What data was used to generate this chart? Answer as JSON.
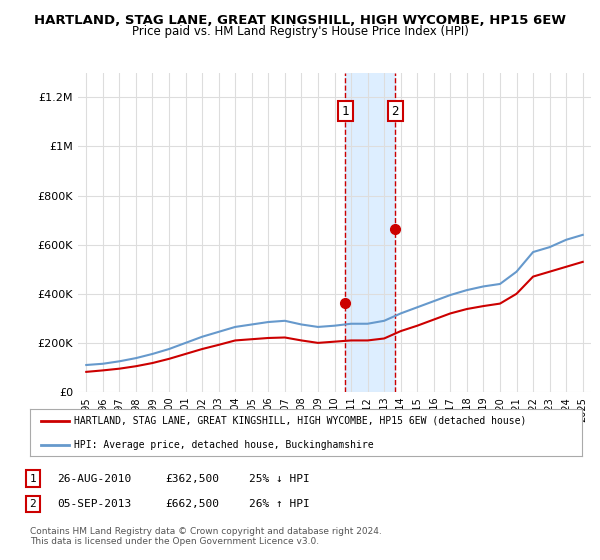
{
  "title": "HARTLAND, STAG LANE, GREAT KINGSHILL, HIGH WYCOMBE, HP15 6EW",
  "subtitle": "Price paid vs. HM Land Registry's House Price Index (HPI)",
  "xlim_years": [
    1995,
    2025
  ],
  "ylim": [
    0,
    1300000
  ],
  "yticks": [
    0,
    200000,
    400000,
    600000,
    800000,
    1000000,
    1200000
  ],
  "ytick_labels": [
    "£0",
    "£200K",
    "£400K",
    "£600K",
    "£800K",
    "£1M",
    "£1.2M"
  ],
  "xtick_years": [
    1995,
    1996,
    1997,
    1998,
    1999,
    2000,
    2001,
    2002,
    2003,
    2004,
    2005,
    2006,
    2007,
    2008,
    2009,
    2010,
    2011,
    2012,
    2013,
    2014,
    2015,
    2016,
    2017,
    2018,
    2019,
    2020,
    2021,
    2022,
    2023,
    2024,
    2025
  ],
  "hpi_years": [
    1995,
    1996,
    1997,
    1998,
    1999,
    2000,
    2001,
    2002,
    2003,
    2004,
    2005,
    2006,
    2007,
    2008,
    2009,
    2010,
    2011,
    2012,
    2013,
    2014,
    2015,
    2016,
    2017,
    2018,
    2019,
    2020,
    2021,
    2022,
    2023,
    2024,
    2025
  ],
  "hpi_values": [
    110000,
    115000,
    125000,
    138000,
    155000,
    175000,
    200000,
    225000,
    245000,
    265000,
    275000,
    285000,
    290000,
    275000,
    265000,
    270000,
    278000,
    278000,
    290000,
    320000,
    345000,
    370000,
    395000,
    415000,
    430000,
    440000,
    490000,
    570000,
    590000,
    620000,
    640000
  ],
  "price_years": [
    1995,
    1996,
    1997,
    1998,
    1999,
    2000,
    2001,
    2002,
    2003,
    2004,
    2005,
    2006,
    2007,
    2008,
    2009,
    2010,
    2011,
    2012,
    2013,
    2014,
    2015,
    2016,
    2017,
    2018,
    2019,
    2020,
    2021,
    2022,
    2023,
    2024,
    2025
  ],
  "price_values": [
    82000,
    88000,
    95000,
    105000,
    118000,
    135000,
    155000,
    175000,
    192000,
    210000,
    215000,
    220000,
    222000,
    210000,
    200000,
    205000,
    210000,
    210000,
    218000,
    248000,
    270000,
    295000,
    320000,
    338000,
    350000,
    360000,
    400000,
    470000,
    490000,
    510000,
    530000
  ],
  "sale1_year": 2010.65,
  "sale1_price": 362500,
  "sale1_label": "1",
  "sale2_year": 2013.67,
  "sale2_price": 662500,
  "sale2_label": "2",
  "sale_color": "#cc0000",
  "hpi_color": "#6699cc",
  "price_color": "#cc0000",
  "shaded_region_color": "#ddeeff",
  "legend_price_label": "HARTLAND, STAG LANE, GREAT KINGSHILL, HIGH WYCOMBE, HP15 6EW (detached house)",
  "legend_hpi_label": "HPI: Average price, detached house, Buckinghamshire",
  "table_row1": [
    "1",
    "26-AUG-2010",
    "£362,500",
    "25% ↓ HPI"
  ],
  "table_row2": [
    "2",
    "05-SEP-2013",
    "£662,500",
    "26% ↑ HPI"
  ],
  "footer": "Contains HM Land Registry data © Crown copyright and database right 2024.\nThis data is licensed under the Open Government Licence v3.0.",
  "bg_color": "#ffffff",
  "grid_color": "#dddddd"
}
